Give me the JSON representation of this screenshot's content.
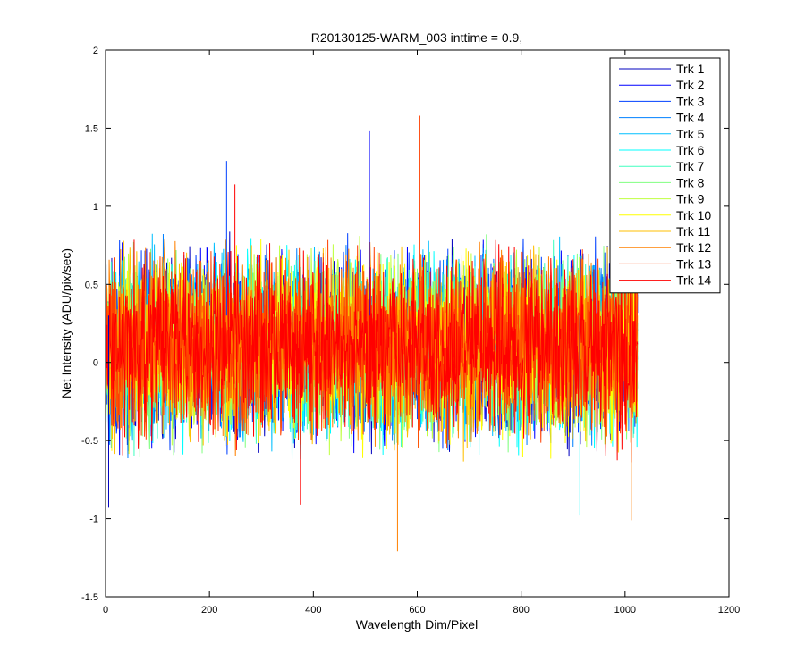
{
  "chart_data": {
    "type": "line",
    "title": "R20130125-WARM_003 inttime = 0.9,",
    "xlabel": "Wavelength Dim/Pixel",
    "ylabel": "Net Intensity (ADU/pix/sec)",
    "xlim": [
      0,
      1200
    ],
    "ylim": [
      -1.5,
      2
    ],
    "xticks": [
      0,
      200,
      400,
      600,
      800,
      1000,
      1200
    ],
    "yticks": [
      -1.5,
      -1,
      -0.5,
      0,
      0.5,
      1,
      1.5,
      2
    ],
    "xtick_labels": [
      "0",
      "200",
      "400",
      "600",
      "800",
      "1000",
      "1200"
    ],
    "ytick_labels": [
      "-1.5",
      "-1",
      "-0.5",
      "0",
      "0.5",
      "1",
      "1.5",
      "2"
    ],
    "grid": false,
    "legend_position": "top-right",
    "x_range": [
      1,
      1024
    ],
    "value_range": [
      -0.7,
      0.9
    ],
    "spikes": [
      {
        "series": "Trk 2",
        "x": 508,
        "y": 1.48
      },
      {
        "series": "Trk 13",
        "x": 605,
        "y": 1.58
      },
      {
        "series": "Trk 12",
        "x": 562,
        "y": -1.21
      },
      {
        "series": "Trk 12",
        "x": 1012,
        "y": -1.01
      },
      {
        "series": "Trk 3",
        "x": 233,
        "y": 1.29
      },
      {
        "series": "Trk 14",
        "x": 249,
        "y": 1.14
      },
      {
        "series": "Trk 6",
        "x": 913,
        "y": -0.98
      },
      {
        "series": "Trk 1",
        "x": 6,
        "y": -0.93
      },
      {
        "series": "Trk 14",
        "x": 375,
        "y": -0.91
      }
    ],
    "series": [
      {
        "name": "Trk 1",
        "color": "#0000bf"
      },
      {
        "name": "Trk 2",
        "color": "#0000ff"
      },
      {
        "name": "Trk 3",
        "color": "#0040ff"
      },
      {
        "name": "Trk 4",
        "color": "#0080ff"
      },
      {
        "name": "Trk 5",
        "color": "#00bfff"
      },
      {
        "name": "Trk 6",
        "color": "#00ffff"
      },
      {
        "name": "Trk 7",
        "color": "#40ffbf"
      },
      {
        "name": "Trk 8",
        "color": "#80ff80"
      },
      {
        "name": "Trk 9",
        "color": "#bfff40"
      },
      {
        "name": "Trk 10",
        "color": "#ffff00"
      },
      {
        "name": "Trk 11",
        "color": "#ffbf00"
      },
      {
        "name": "Trk 12",
        "color": "#ff8000"
      },
      {
        "name": "Trk 13",
        "color": "#ff4000"
      },
      {
        "name": "Trk 14",
        "color": "#ff0000"
      }
    ]
  }
}
